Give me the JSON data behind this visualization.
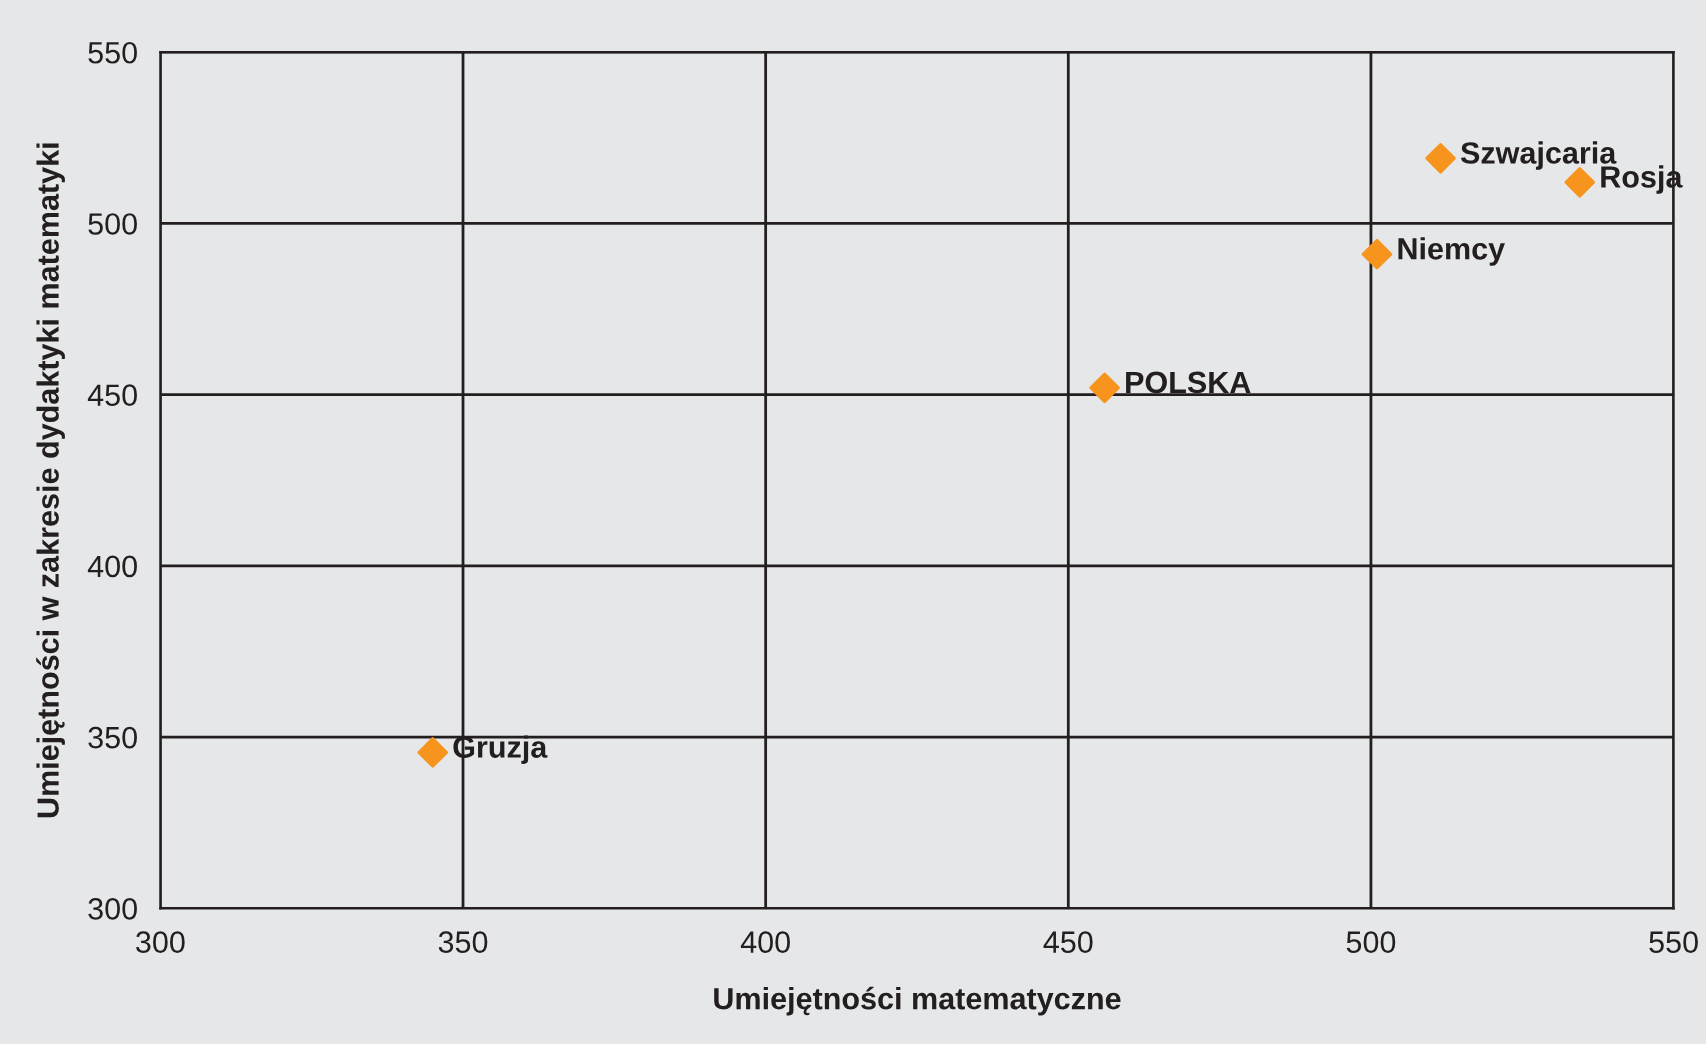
{
  "chart_data": {
    "type": "scatter",
    "xlabel": "Umiejętności matematyczne",
    "ylabel": "Umiejętności w zakresie dydaktyki matematyki",
    "x": [
      345,
      456,
      501,
      511.5,
      534.5
    ],
    "series": [
      {
        "color": "#f7941d",
        "values": [
          345.5,
          452,
          491,
          519,
          512
        ]
      }
    ],
    "marker": "diamond",
    "grid": true,
    "xlim": [
      300,
      550
    ],
    "xticks": [
      300,
      350,
      400,
      450,
      500,
      550
    ],
    "ylim": [
      300,
      550
    ],
    "yticks": [
      300,
      350,
      400,
      450,
      500,
      550
    ],
    "annotations": [
      {
        "text": "Gruzja",
        "x": 345,
        "y": 345.5
      },
      {
        "text": "POLSKA",
        "x": 456,
        "y": 452
      },
      {
        "text": "Niemcy",
        "x": 501,
        "y": 491
      },
      {
        "text": "Szwajcaria",
        "x": 511.5,
        "y": 519
      },
      {
        "text": "Rosja",
        "x": 534.5,
        "y": 512
      }
    ]
  }
}
